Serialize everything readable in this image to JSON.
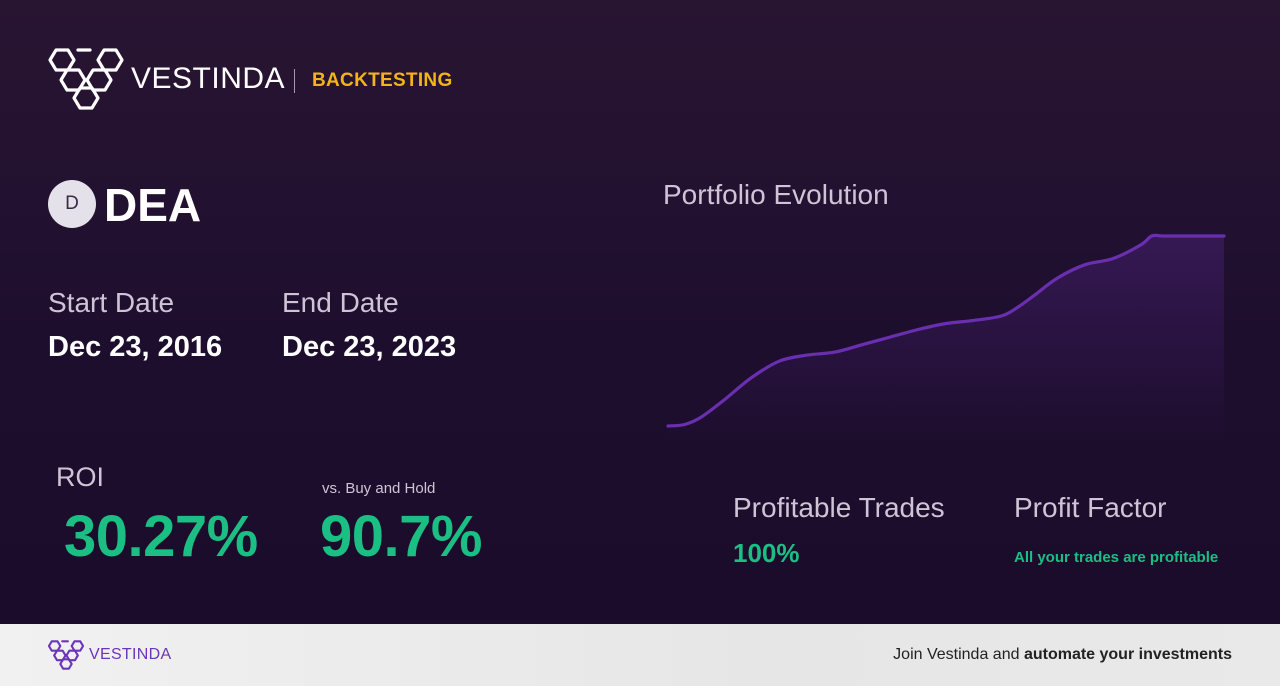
{
  "brand": {
    "name": "VESTINDA",
    "tagline": "BACKTESTING",
    "accent_color": "#f3b41a",
    "logo_icon": "hexagon-cluster-logo-icon"
  },
  "asset": {
    "badge_letter": "D",
    "symbol": "DEA"
  },
  "dates": {
    "start_label": "Start Date",
    "start_value": "Dec 23, 2016",
    "end_label": "End Date",
    "end_value": "Dec 23, 2023"
  },
  "metrics": {
    "roi_label": "ROI",
    "roi_value": "30.27%",
    "buy_hold_label": "vs. Buy and Hold",
    "buy_hold_value": "90.7%",
    "profitable_trades_label": "Profitable Trades",
    "profitable_trades_value": "100%",
    "profit_factor_label": "Profit Factor",
    "profit_factor_value": "All your trades are profitable",
    "positive_color": "#1bbf84"
  },
  "chart": {
    "title": "Portfolio Evolution",
    "line_color": "#6a2fb0"
  },
  "chart_data": {
    "type": "area",
    "title": "Portfolio Evolution",
    "xlabel": "",
    "ylabel": "",
    "x": [
      0,
      0.03,
      0.06,
      0.1,
      0.15,
      0.2,
      0.25,
      0.3,
      0.35,
      0.4,
      0.45,
      0.5,
      0.55,
      0.6,
      0.63,
      0.66,
      0.7,
      0.75,
      0.8,
      0.85,
      0.87,
      0.89,
      0.91,
      0.93,
      1.0
    ],
    "values": [
      0,
      1,
      6,
      17,
      32,
      43,
      47,
      49,
      54,
      59,
      64,
      68,
      70,
      73,
      79,
      87,
      98,
      107,
      111,
      120,
      126,
      126,
      126,
      126,
      126
    ],
    "ylim": [
      0,
      126
    ],
    "grid": false,
    "legend": "none"
  },
  "footer": {
    "brand_name": "VESTINDA",
    "cta_prefix": "Join Vestinda and ",
    "cta_bold": "automate your investments"
  }
}
